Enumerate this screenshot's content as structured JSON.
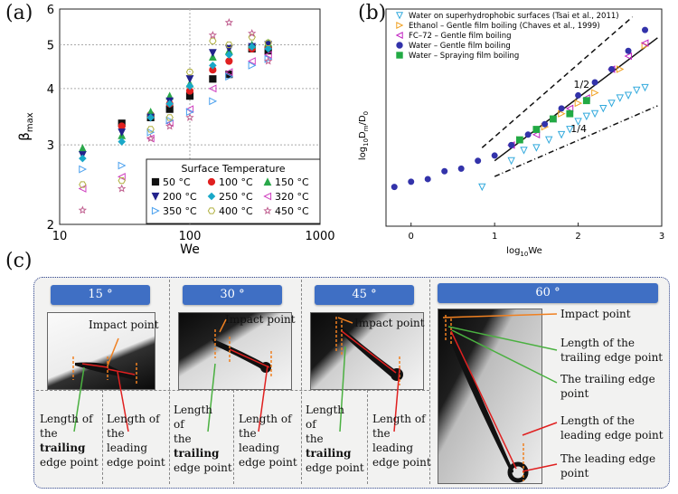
{
  "panel_labels": {
    "a": "(a)",
    "b": "(b)",
    "c": "(c)"
  },
  "chart_data": [
    {
      "type": "scatter",
      "panel": "a",
      "xlabel": "We",
      "ylabel": "βmax",
      "xscale": "log",
      "yscale": "log",
      "xlim": [
        10,
        1000
      ],
      "ylim": [
        2,
        6
      ],
      "xticklabels": [
        "10",
        "100",
        "1000"
      ],
      "yticklabels": [
        "2",
        "3",
        "4",
        "5",
        "6"
      ],
      "legend_title": "Surface Temperature",
      "legend_position": "bottom-right",
      "series": [
        {
          "name": "50 °C",
          "marker": "square",
          "color": "#111111",
          "x": [
            30,
            50,
            70,
            100,
            150,
            200,
            300,
            400
          ],
          "y": [
            3.35,
            3.45,
            3.6,
            3.85,
            4.2,
            4.3,
            4.9,
            4.85
          ]
        },
        {
          "name": "100 °C",
          "marker": "circle",
          "color": "#e02020",
          "x": [
            30,
            50,
            70,
            100,
            150,
            200,
            300,
            400
          ],
          "y": [
            3.3,
            3.5,
            3.7,
            3.95,
            4.4,
            4.6,
            4.9,
            4.95
          ]
        },
        {
          "name": "150 °C",
          "marker": "triangle-up",
          "color": "#2aa84a",
          "x": [
            15,
            30,
            50,
            70,
            100,
            150,
            200,
            300,
            400
          ],
          "y": [
            2.95,
            3.15,
            3.55,
            3.85,
            4.1,
            4.7,
            4.85,
            5.0,
            5.05
          ]
        },
        {
          "name": "200 °C",
          "marker": "triangle-down",
          "color": "#23238c",
          "x": [
            15,
            30,
            50,
            70,
            100,
            150,
            200,
            300,
            400
          ],
          "y": [
            2.85,
            3.2,
            3.45,
            3.75,
            4.2,
            4.8,
            4.9,
            4.95,
            5.0
          ]
        },
        {
          "name": "250 °C",
          "marker": "diamond",
          "color": "#19a8c8",
          "x": [
            15,
            30,
            50,
            70,
            100,
            150,
            200,
            300,
            400
          ],
          "y": [
            2.8,
            3.05,
            3.45,
            3.7,
            4.05,
            4.5,
            4.75,
            4.95,
            4.9
          ]
        },
        {
          "name": "320 °C",
          "marker": "triangle-left",
          "color": "#d040c0",
          "x": [
            15,
            30,
            50,
            70,
            100,
            150,
            200,
            300,
            400
          ],
          "y": [
            2.4,
            2.55,
            3.1,
            3.35,
            3.6,
            4.0,
            4.35,
            4.6,
            4.75
          ]
        },
        {
          "name": "350 °C",
          "marker": "triangle-right",
          "color": "#4aa0ee",
          "x": [
            15,
            30,
            50,
            70,
            100,
            150,
            200,
            300,
            400
          ],
          "y": [
            2.65,
            2.7,
            3.2,
            3.4,
            3.55,
            3.75,
            4.25,
            4.5,
            4.65
          ]
        },
        {
          "name": "400 °C",
          "marker": "hexagon",
          "color": "#b0b040",
          "x": [
            15,
            30,
            50,
            70,
            100,
            150,
            200,
            300,
            400
          ],
          "y": [
            2.45,
            2.5,
            3.25,
            3.45,
            4.35,
            5.1,
            5.0,
            5.2,
            5.05
          ]
        },
        {
          "name": "450 °C",
          "marker": "star",
          "color": "#c06090",
          "x": [
            15,
            30,
            50,
            70,
            100,
            150,
            200,
            300,
            400
          ],
          "y": [
            2.15,
            2.4,
            3.1,
            3.3,
            3.45,
            5.25,
            5.6,
            5.3,
            4.6
          ]
        }
      ]
    },
    {
      "type": "scatter",
      "panel": "b",
      "xlabel": "log10We",
      "ylabel": "log10Dm/D0",
      "xlim": [
        -0.3,
        3.0
      ],
      "ylim": [
        -0.05,
        0.78
      ],
      "xticklabels": [
        "0",
        "1",
        "2",
        "3"
      ],
      "legend_position": "top-left",
      "series": [
        {
          "name": "Water on superhydrophobic surfaces (Tsai et al., 2011)",
          "marker": "triangle-down-open",
          "color": "#33aadd",
          "x": [
            0.85,
            1.2,
            1.35,
            1.5,
            1.65,
            1.8,
            1.9,
            2.0,
            2.1,
            2.2,
            2.3,
            2.4,
            2.5,
            2.6,
            2.7,
            2.8
          ],
          "y": [
            0.1,
            0.2,
            0.24,
            0.25,
            0.28,
            0.3,
            0.32,
            0.35,
            0.37,
            0.38,
            0.4,
            0.42,
            0.44,
            0.45,
            0.47,
            0.48
          ]
        },
        {
          "name": "Ethanol – Gentle film boiling (Chaves et al., 1999)",
          "marker": "triangle-right",
          "color": "#f0a020",
          "x": [
            1.3,
            1.6,
            1.8,
            2.0,
            2.2,
            2.5,
            2.8
          ],
          "y": [
            0.28,
            0.33,
            0.38,
            0.42,
            0.46,
            0.55,
            0.64
          ]
        },
        {
          "name": "FC–72 – Gentle film boiling",
          "marker": "triangle-left",
          "color": "#c020c0",
          "x": [
            1.2,
            1.5,
            1.7,
            1.9,
            2.1,
            2.4,
            2.6,
            2.8
          ],
          "y": [
            0.26,
            0.3,
            0.36,
            0.4,
            0.44,
            0.55,
            0.6,
            0.65
          ]
        },
        {
          "name": "Water – Gentle film boiling",
          "marker": "circle",
          "color": "#3333aa",
          "x": [
            -0.2,
            0.0,
            0.2,
            0.4,
            0.6,
            0.8,
            1.0,
            1.2,
            1.4,
            1.6,
            1.8,
            2.0,
            2.2,
            2.4,
            2.6,
            2.8
          ],
          "y": [
            0.1,
            0.12,
            0.13,
            0.16,
            0.17,
            0.2,
            0.22,
            0.26,
            0.3,
            0.34,
            0.4,
            0.45,
            0.5,
            0.55,
            0.62,
            0.7
          ]
        },
        {
          "name": "Water – Spraying film boiling",
          "marker": "square",
          "color": "#22aa44",
          "x": [
            1.3,
            1.5,
            1.7,
            1.9,
            2.1
          ],
          "y": [
            0.28,
            0.32,
            0.36,
            0.38,
            0.43
          ]
        }
      ],
      "reference_lines": [
        {
          "label": "1/2",
          "style": "dashed",
          "x": [
            0.85,
            2.65
          ],
          "y": [
            0.25,
            0.75
          ]
        },
        {
          "label": "1/4",
          "style": "dash-dot",
          "x": [
            1.0,
            2.95
          ],
          "y": [
            0.14,
            0.41
          ]
        },
        {
          "label": "",
          "style": "solid",
          "x": [
            1.0,
            2.95
          ],
          "y": [
            0.2,
            0.67
          ]
        }
      ]
    }
  ],
  "panel_c": {
    "panels": [
      {
        "angle": "15 °",
        "impact_label": "Impact point",
        "trailing_label": [
          "Length of",
          "the",
          "trailing",
          "edge point"
        ],
        "leading_label": [
          "Length of",
          "the",
          "leading",
          "edge point"
        ]
      },
      {
        "angle": "30 °",
        "impact_label": "Impact point",
        "trailing_label": [
          "Length",
          "of",
          "the",
          "trailing",
          "edge point"
        ],
        "leading_label": [
          "Length of",
          "the",
          "leading",
          "edge point"
        ]
      },
      {
        "angle": "45 °",
        "impact_label": "Impact point",
        "trailing_label": [
          "Length",
          "of",
          "the",
          "trailing",
          "edge point"
        ],
        "leading_label": [
          "Length of",
          "the",
          "leading",
          "edge point"
        ]
      },
      {
        "angle": "60 °",
        "labels": [
          "Impact point",
          "Length of the trailing edge point",
          "The trailing edge point",
          "Length of the leading edge point",
          "The leading edge point"
        ]
      }
    ]
  }
}
